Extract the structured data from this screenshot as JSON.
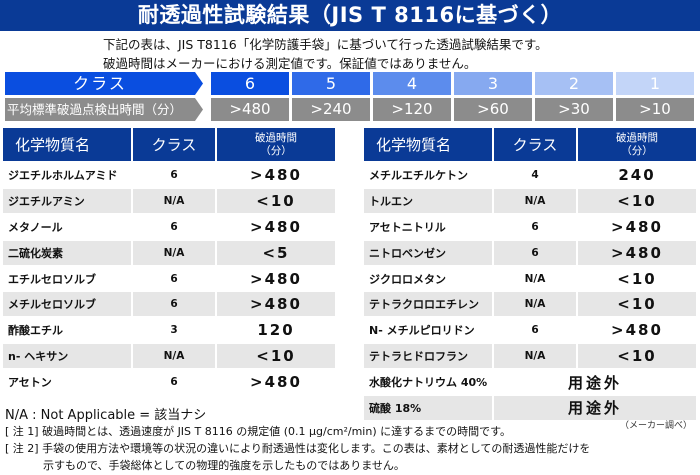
{
  "title": "耐透過性試験結果（JIS T 8116に基づく）",
  "intro": {
    "line1": "下記の表は、JIS T8116「化学防護手袋」に基づいて行った透過試験結果です。",
    "line2": "破過時間はメーカーにおける測定値です。保証値ではありません。"
  },
  "class_scale": {
    "class_label": "クラス",
    "time_label": "平均標準破過点検出時間（分）",
    "classes": [
      {
        "class": "6",
        "time": ">480",
        "color": "#0a4ee0"
      },
      {
        "class": "5",
        "time": ">240",
        "color": "#2f6ae8"
      },
      {
        "class": "4",
        "time": ">120",
        "color": "#5c8ced"
      },
      {
        "class": "3",
        "time": ">60",
        "color": "#86a9f0"
      },
      {
        "class": "2",
        "time": ">30",
        "color": "#a6c0f4"
      },
      {
        "class": "1",
        "time": ">10",
        "color": "#c3d5f8"
      }
    ]
  },
  "table_headers": {
    "name": "化学物質名",
    "class": "クラス",
    "time_line1": "破過時間",
    "time_line2": "（分）"
  },
  "left_table": [
    {
      "name": "ジエチルホルムアミド",
      "class": "6",
      "time": ">480"
    },
    {
      "name": "ジエチルアミン",
      "class": "N/A",
      "time": "<10"
    },
    {
      "name": "メタノール",
      "class": "6",
      "time": ">480"
    },
    {
      "name": "二硫化炭素",
      "class": "N/A",
      "time": "<5"
    },
    {
      "name": "エチルセロソルブ",
      "class": "6",
      "time": ">480"
    },
    {
      "name": "メチルセロソルブ",
      "class": "6",
      "time": ">480"
    },
    {
      "name": "酢酸エチル",
      "class": "3",
      "time": "120"
    },
    {
      "name": "n- ヘキサン",
      "class": "N/A",
      "time": "<10"
    },
    {
      "name": "アセトン",
      "class": "6",
      "time": ">480"
    }
  ],
  "right_table": [
    {
      "name": "メチルエチルケトン",
      "class": "4",
      "time": "240"
    },
    {
      "name": "トルエン",
      "class": "N/A",
      "time": "<10"
    },
    {
      "name": "アセトニトリル",
      "class": "6",
      "time": ">480"
    },
    {
      "name": "ニトロベンゼン",
      "class": "6",
      "time": ">480"
    },
    {
      "name": "ジクロロメタン",
      "class": "N/A",
      "time": "<10"
    },
    {
      "name": "テトラクロロエチレン",
      "class": "N/A",
      "time": "<10"
    },
    {
      "name": "N- メチルピロリドン",
      "class": "6",
      "time": ">480"
    },
    {
      "name": "テトラヒドロフラン",
      "class": "N/A",
      "time": "<10"
    },
    {
      "name": "水酸化ナトリウム 40%",
      "merged": "用途外"
    },
    {
      "name": "硫酸 18%",
      "merged": "用途外"
    }
  ],
  "legend_na": "N/A : Not Applicable = 該当ナシ",
  "source": "（メーカー調べ）",
  "notes": {
    "note1": "[ 注 1] 破過時間とは、透過速度が JIS T 8116 の規定値 (0.1 μg/cm²/min) に達するまでの時間です。",
    "note2_line1": "[ 注 2] 手袋の使用方法や環境等の状況の違いにより耐透過性は変化します。この表は、素材としての耐透過性能だけを",
    "note2_line2": "示すもので、手袋総体としての物理的強度を示したものではありません。"
  }
}
